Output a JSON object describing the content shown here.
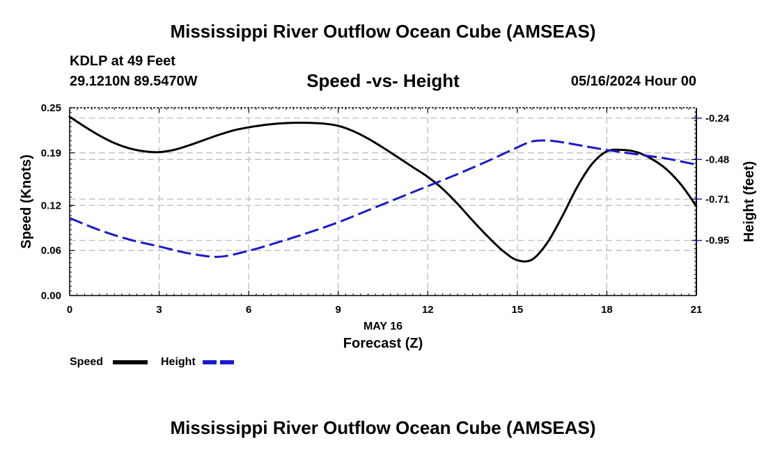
{
  "page": {
    "title_top": "Mississippi River Outflow Ocean Cube (AMSEAS)",
    "title_bottom": "Mississippi River Outflow Ocean Cube (AMSEAS)",
    "station": "KDLP at 49 Feet",
    "coordinates": "29.1210N  89.5470W",
    "run_time": "05/16/2024 Hour 00"
  },
  "chart_data": {
    "type": "line",
    "title": "Speed -vs- Height",
    "xlabel_date": "MAY 16",
    "xlabel": "Forecast (Z)",
    "ylabel": "Speed (Knots)",
    "y2label": "Height (feet)",
    "xlim": [
      0,
      21
    ],
    "ylim": [
      0,
      0.25
    ],
    "y2lim": [
      -1.27,
      -0.18
    ],
    "x_ticks": [
      "0",
      "3",
      "6",
      "9",
      "12",
      "15",
      "18",
      "21"
    ],
    "y_ticks": [
      "0.00",
      "0.06",
      "0.12",
      "0.19",
      "0.25"
    ],
    "y2_ticks": [
      "-0.24",
      "-0.48",
      "-0.71",
      "-0.95"
    ],
    "grid": true,
    "series": [
      {
        "name": "Speed",
        "axis": "left",
        "color": "#000000",
        "style": "solid",
        "x": [
          0,
          0.5,
          1,
          1.5,
          2,
          2.5,
          3,
          3.5,
          4,
          4.5,
          5,
          5.5,
          6,
          6.5,
          7,
          7.5,
          8,
          8.5,
          9,
          9.5,
          10,
          10.5,
          11,
          11.5,
          12,
          12.5,
          13,
          13.5,
          14,
          14.5,
          15,
          15.5,
          16,
          16.5,
          17,
          17.5,
          18,
          18.5,
          19,
          19.5,
          20,
          20.5,
          21
        ],
        "values": [
          0.238,
          0.225,
          0.213,
          0.203,
          0.196,
          0.192,
          0.191,
          0.194,
          0.2,
          0.207,
          0.214,
          0.22,
          0.224,
          0.227,
          0.229,
          0.23,
          0.23,
          0.229,
          0.226,
          0.219,
          0.209,
          0.197,
          0.184,
          0.171,
          0.158,
          0.142,
          0.122,
          0.1,
          0.079,
          0.06,
          0.047,
          0.048,
          0.07,
          0.105,
          0.144,
          0.175,
          0.192,
          0.194,
          0.191,
          0.182,
          0.168,
          0.147,
          0.119
        ]
      },
      {
        "name": "Height",
        "axis": "right",
        "color": "#1a1acc",
        "style": "dashed",
        "x": [
          0,
          1,
          2,
          3,
          4,
          5,
          6,
          7,
          8,
          9,
          10,
          11,
          12,
          13,
          14,
          15,
          15.5,
          16,
          16.5,
          17,
          18,
          19,
          20,
          21
        ],
        "values": [
          -0.82,
          -0.89,
          -0.945,
          -0.985,
          -1.025,
          -1.045,
          -1.01,
          -0.96,
          -0.905,
          -0.845,
          -0.775,
          -0.705,
          -0.635,
          -0.565,
          -0.49,
          -0.41,
          -0.375,
          -0.37,
          -0.38,
          -0.395,
          -0.425,
          -0.45,
          -0.475,
          -0.51
        ]
      }
    ],
    "legend": {
      "position": "bottom-left",
      "items": [
        "Speed",
        "Height"
      ]
    }
  }
}
